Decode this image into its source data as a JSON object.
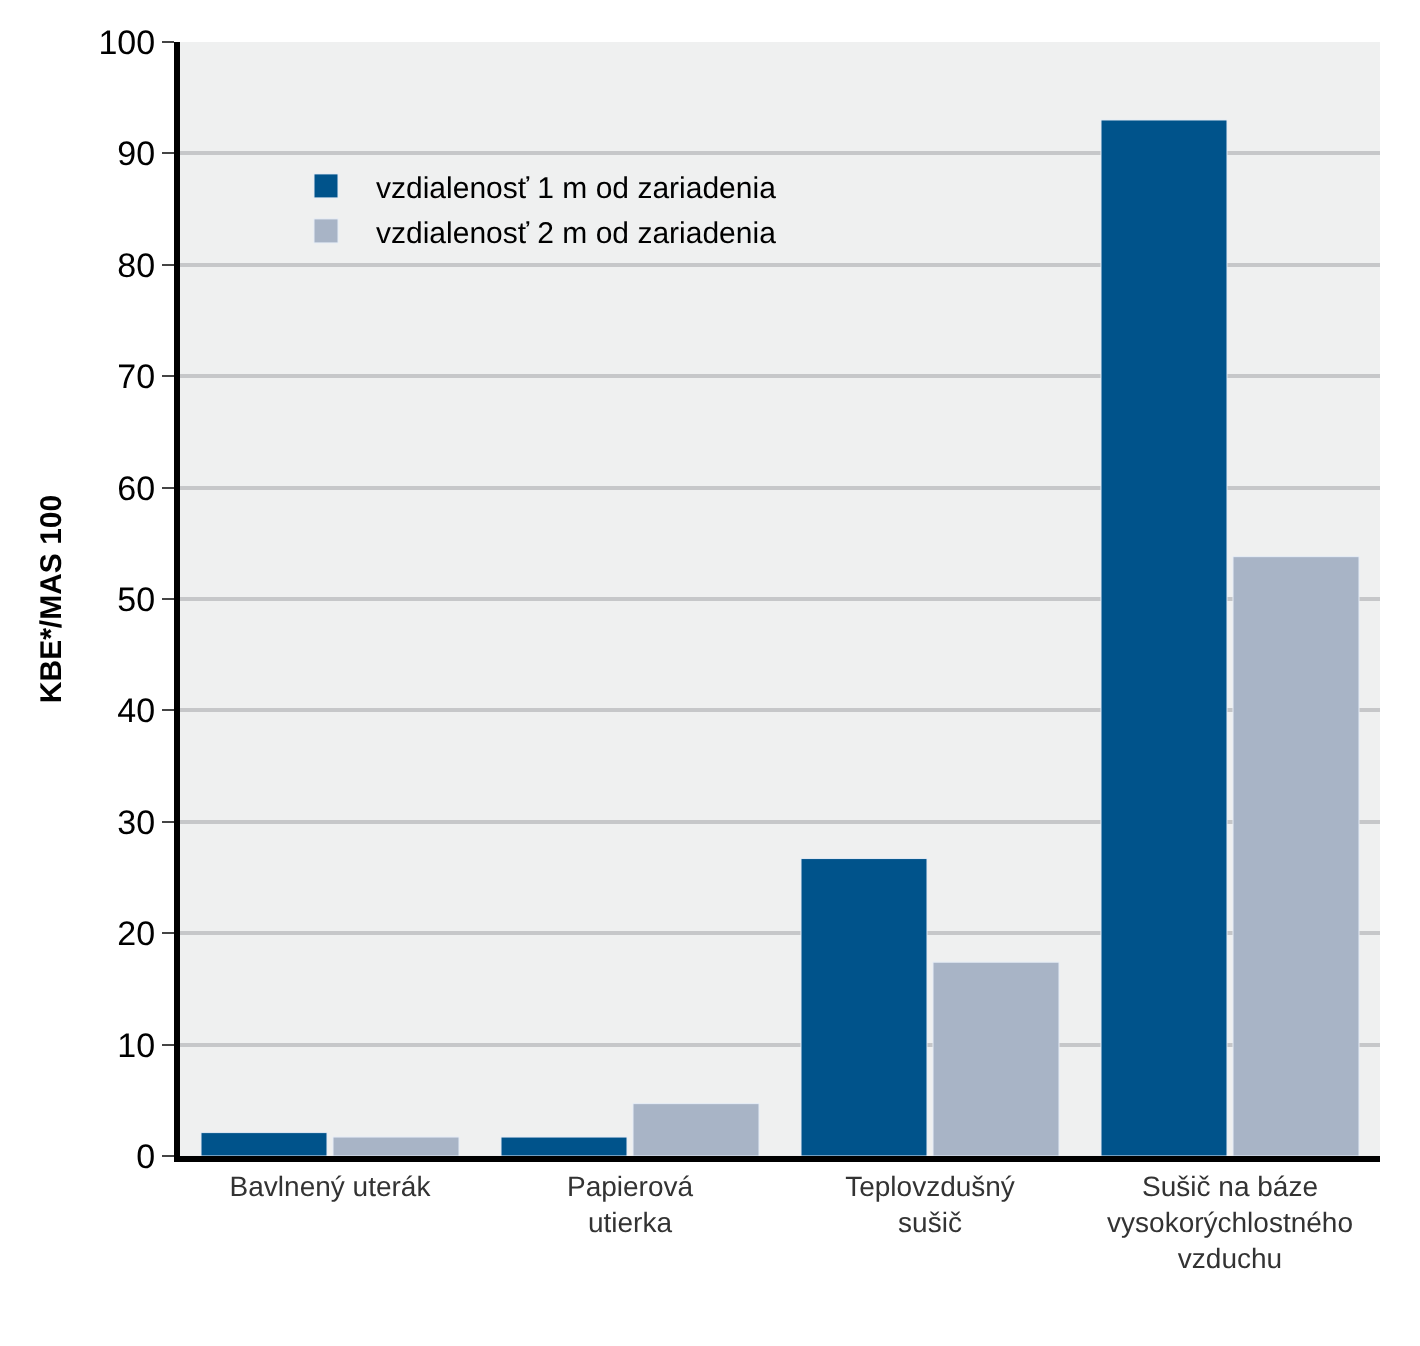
{
  "chart_data": {
    "type": "bar",
    "ylabel": "KBE*/MAS 100",
    "categories": [
      "Bavlnený uterák",
      "Papierová utierka",
      "Teplovzdušný sušič",
      "Sušič na báze vysokorýchlostného vzduchu"
    ],
    "series": [
      {
        "name": "vzdialenosť 1 m od zariadenia",
        "color": "#00538b",
        "values": [
          2.1,
          1.7,
          26.7,
          93
        ]
      },
      {
        "name": "vzdialenosť 2 m od zariadenia",
        "color": "#a8b4c6",
        "values": [
          1.7,
          4.7,
          17.4,
          53.8
        ]
      }
    ],
    "ylim": [
      0,
      100
    ],
    "yticks": [
      0,
      10,
      20,
      30,
      40,
      50,
      60,
      70,
      80,
      90,
      100
    ],
    "grid": "y",
    "legend": "top left"
  }
}
